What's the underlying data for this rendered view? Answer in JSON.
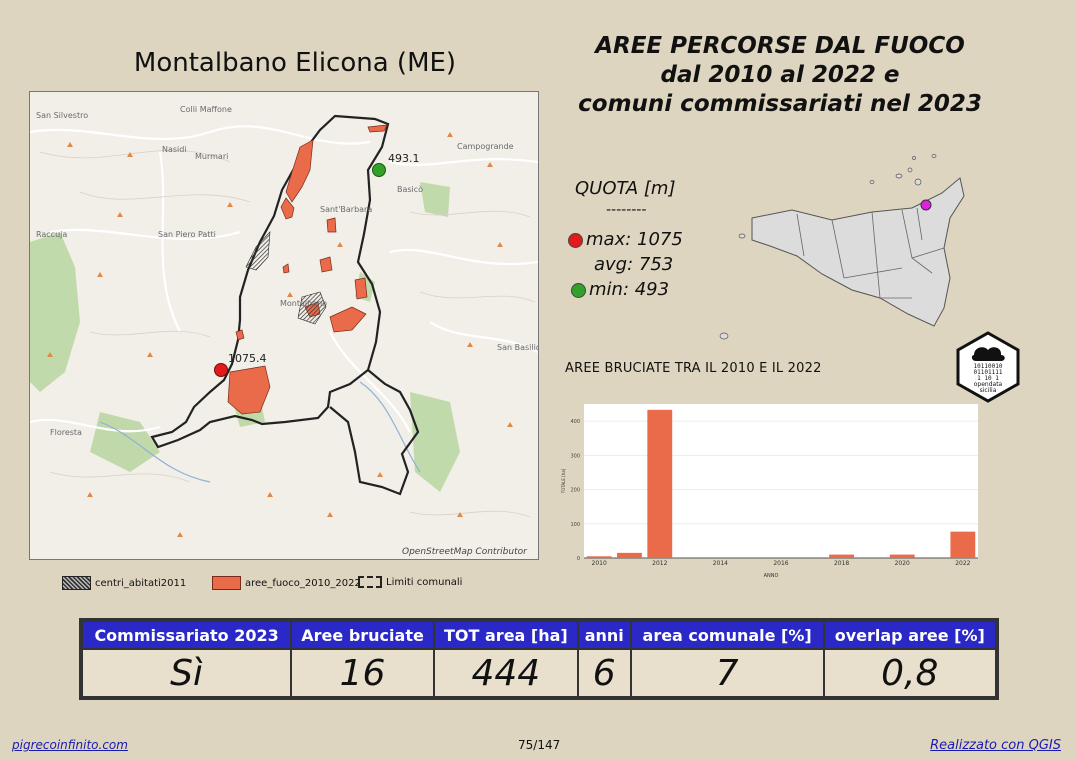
{
  "map_title": "Montalbano Elicona (ME)",
  "main_title": [
    "AREE PERCORSE DAL FUOCO",
    "dal 2010 al 2022 e",
    "comuni commissariati nel 2023"
  ],
  "map": {
    "place_labels": [
      "San Silvestro",
      "Colli Maffone",
      "Nasidi",
      "Murmari",
      "Campogrande",
      "Basicò",
      "Sant'Barbara",
      "Raccuja",
      "San Piero Patti",
      "Montalbano",
      "San Basilio",
      "Floresta"
    ],
    "markers": {
      "max": "1075.4",
      "min": "493.1"
    },
    "attribution": "OpenStreetMap Contributor"
  },
  "legend": [
    {
      "label": "centri_abitati2011",
      "icon": "hatched-swatch-icon"
    },
    {
      "label": "aree_fuoco_2010_2022",
      "icon": "fire-area-swatch-icon"
    },
    {
      "label": "Limiti comunali",
      "icon": "boundary-swatch-icon"
    }
  ],
  "quota": {
    "title": "QUOTA [m]",
    "separator": "--------",
    "max": "max: 1075",
    "avg": "avg: 753",
    "min": "min: 493"
  },
  "colors": {
    "max": "#e31a1c",
    "min": "#33a02c",
    "fire": "#ea6b4a",
    "header_bg": "#2b28c8",
    "locator_marker": "#e020e0"
  },
  "logo_text": [
    "10110010",
    "01101111",
    "1  10 1",
    "opendata",
    "sicilia"
  ],
  "chart_title": "AREE BRUCIATE TRA IL 2010 E IL 2022",
  "chart_data": {
    "type": "bar",
    "x": [
      2010,
      2011,
      2012,
      2018,
      2020,
      2022
    ],
    "values": [
      5,
      15,
      433,
      10,
      10,
      77
    ],
    "xticks": [
      "2010",
      "2012",
      "2014",
      "2016",
      "2018",
      "2020",
      "2022"
    ],
    "yticks": [
      "0",
      "100",
      "200",
      "300",
      "400"
    ],
    "ylabel": "TOTALE [ha]",
    "xlabel": "ANNO",
    "xlim": [
      2009.5,
      2022.5
    ],
    "ylim": [
      0,
      450
    ],
    "color": "#ea6b4a"
  },
  "table": {
    "headers": [
      "Commissariato 2023",
      "Aree bruciate",
      "TOT area [ha]",
      "anni",
      "area comunale [%]",
      "overlap aree [%]"
    ],
    "values": [
      "Sì",
      "16",
      "444",
      "6",
      "7",
      "0,8"
    ]
  },
  "footer": {
    "link": "pigrecoinfinito.com",
    "page": "75/147",
    "credit": "Realizzato con QGIS"
  }
}
